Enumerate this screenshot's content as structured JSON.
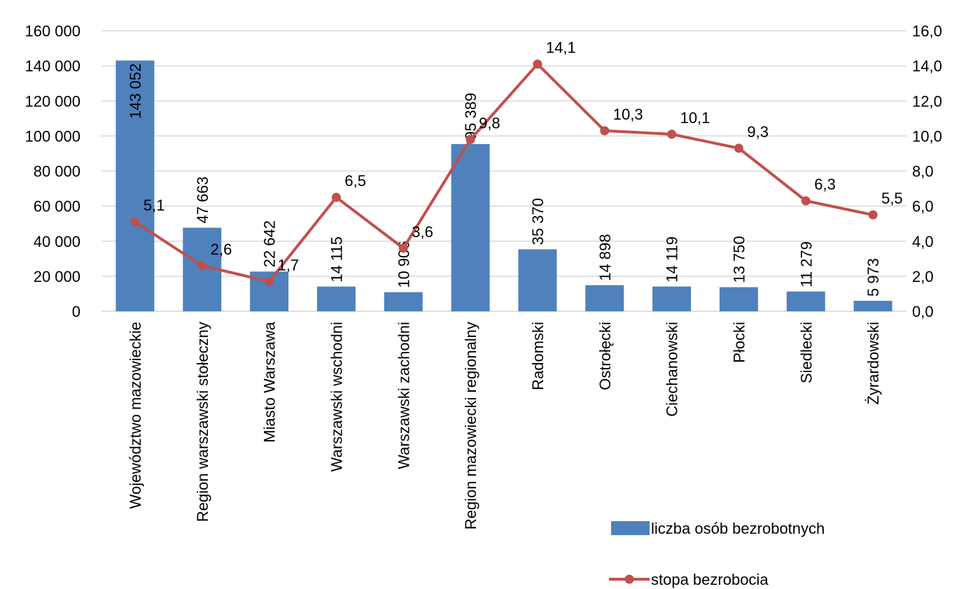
{
  "chart_data": {
    "type": "bar",
    "categories": [
      "Województwo mazowieckie",
      "Region warszawski stołeczny",
      "Miasto Warszawa",
      "Warszawski wschodni",
      "Warszawski zachodni",
      "Region mazowiecki regionalny",
      "Radomski",
      "Ostrołęcki",
      "Ciechanowski",
      "Płocki",
      "Siedlecki",
      "Żyrardowski"
    ],
    "series": [
      {
        "name": "liczba osób bezrobotnych",
        "type": "bar",
        "color": "#4f81bd",
        "values": [
          143052,
          47663,
          22642,
          14115,
          10906,
          95389,
          35370,
          14898,
          14119,
          13750,
          11279,
          5973
        ],
        "value_labels": [
          "143 052",
          "47 663",
          "22 642",
          "14 115",
          "10 906",
          "95 389",
          "35 370",
          "14 898",
          "14 119",
          "13 750",
          "11 279",
          "5 973"
        ]
      },
      {
        "name": "stopa bezrobocia",
        "type": "line",
        "axis": "y2",
        "color": "#c0504d",
        "values": [
          5.1,
          2.6,
          1.7,
          6.5,
          3.6,
          9.8,
          14.1,
          10.3,
          10.1,
          9.3,
          6.3,
          5.5
        ],
        "value_labels": [
          "5,1",
          "2,6",
          "1,7",
          "6,5",
          "3,6",
          "9,8",
          "14,1",
          "10,3",
          "10,1",
          "9,3",
          "6,3",
          "5,5"
        ]
      }
    ],
    "ylim": [
      0,
      160000
    ],
    "yticks": [
      0,
      {
        "value": 20000,
        "label": "20 000"
      },
      {
        "value": 40000,
        "label": "40 000"
      },
      {
        "value": 60000,
        "label": "60 000"
      },
      {
        "value": 80000,
        "label": "80 000"
      },
      {
        "value": 100000,
        "label": "100 000"
      },
      {
        "value": 120000,
        "label": "120 000"
      },
      {
        "value": 140000,
        "label": "140 000"
      },
      {
        "value": 160000,
        "label": "160 000"
      }
    ],
    "y2lim": [
      0,
      16
    ],
    "y2ticks": [
      {
        "value": 0,
        "label": "0,0"
      },
      {
        "value": 2,
        "label": "2,0"
      },
      {
        "value": 4,
        "label": "4,0"
      },
      {
        "value": 6,
        "label": "6,0"
      },
      {
        "value": 8,
        "label": "8,0"
      },
      {
        "value": 10,
        "label": "10,0"
      },
      {
        "value": 12,
        "label": "12,0"
      },
      {
        "value": 14,
        "label": "14,0"
      },
      {
        "value": 16,
        "label": "16,0"
      }
    ],
    "grid": true,
    "legend": "bottom-right"
  }
}
